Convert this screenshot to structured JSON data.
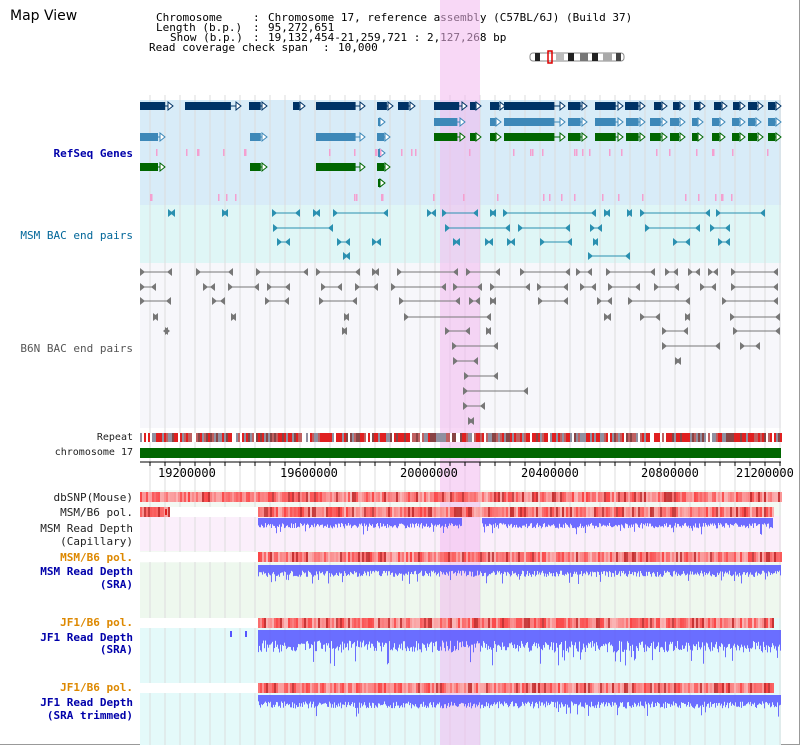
{
  "title": "Map View",
  "header": {
    "line1_key": "Chromosome",
    "line1_val": "Chromosome 17, reference assembly (C57BL/6J) (Build 37)",
    "line2_key": "Length (b.p.)",
    "line2_val": "95,272,651",
    "line3_key": "Show (b.p.)",
    "line3_val": "19,132,454-21,259,721 : 2,127,268 bp",
    "line4_key": "Read coverage check span",
    "line4_val": "10,000"
  },
  "tracks": {
    "refseq": "RefSeq Genes",
    "msm_bac": "MSM BAC end pairs",
    "b6n_bac": "B6N BAC end pairs",
    "repeat": "Repeat",
    "chromosome": "chromosome 17",
    "dbsnp": "dbSNP(Mouse)",
    "msm_b6_pol_1": "MSM/B6 pol.",
    "msm_depth_cap_1": "MSM Read Depth",
    "msm_depth_cap_2": "(Capillary)",
    "msm_b6_pol_2": "MSM/B6 pol.",
    "msm_depth_sra_1": "MSM Read Depth",
    "msm_depth_sra_2": "(SRA)",
    "jf1_b6_pol_1": "JF1/B6 pol.",
    "jf1_depth_sra_1": "JF1 Read Depth",
    "jf1_depth_sra_2": "(SRA)",
    "jf1_b6_pol_2": "JF1/B6 pol.",
    "jf1_depth_trim_1": "JF1 Read Depth",
    "jf1_depth_trim_2": "(SRA trimmed)"
  },
  "axis": {
    "ticks": [
      "19200000",
      "19600000",
      "20000000",
      "20400000",
      "20800000",
      "21200000"
    ]
  },
  "colors": {
    "refseq_dark": "#003366",
    "refseq_mid": "#3d88b8",
    "refseq_green": "#006600",
    "highlight": "#f2b8ee",
    "chromosome_bar": "#006600",
    "depth_blue": "#5555ff",
    "label_orange": "#dd8800",
    "label_blue": "#0000aa"
  }
}
